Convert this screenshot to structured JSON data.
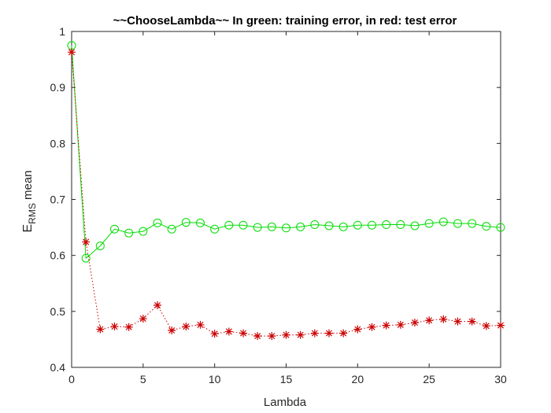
{
  "chart_data": {
    "type": "line",
    "title": "~~ChooseLambda~~ In green: training error, in red: test error",
    "xlabel": "Lambda",
    "ylabel_main": "E",
    "ylabel_sub": "RMS",
    "ylabel_suffix": " mean",
    "xlim": [
      0,
      30
    ],
    "ylim": [
      0.4,
      1.0
    ],
    "xticks": [
      0,
      5,
      10,
      15,
      20,
      25,
      30
    ],
    "yticks": [
      0.4,
      0.5,
      0.6,
      0.7,
      0.8,
      0.9,
      1.0
    ],
    "ytick_labels": [
      "0.4",
      "0.5",
      "0.6",
      "0.7",
      "0.8",
      "0.9",
      "1"
    ],
    "grid": false,
    "x": [
      0,
      1,
      2,
      3,
      4,
      5,
      6,
      7,
      8,
      9,
      10,
      11,
      12,
      13,
      14,
      15,
      16,
      17,
      18,
      19,
      20,
      21,
      22,
      23,
      24,
      25,
      26,
      27,
      28,
      29,
      30
    ],
    "series": [
      {
        "color": "#00dd00",
        "marker": "circle",
        "linestyle": "solid",
        "values": [
          0.975,
          0.595,
          0.617,
          0.647,
          0.64,
          0.643,
          0.658,
          0.647,
          0.659,
          0.658,
          0.647,
          0.654,
          0.654,
          0.65,
          0.651,
          0.649,
          0.651,
          0.655,
          0.653,
          0.651,
          0.654,
          0.654,
          0.655,
          0.655,
          0.653,
          0.657,
          0.66,
          0.657,
          0.657,
          0.652,
          0.65
        ]
      },
      {
        "color": "#cc0000",
        "marker": "asterisk",
        "linestyle": "dotted",
        "values": [
          0.963,
          0.624,
          0.468,
          0.473,
          0.472,
          0.487,
          0.511,
          0.466,
          0.473,
          0.476,
          0.46,
          0.464,
          0.461,
          0.456,
          0.456,
          0.458,
          0.458,
          0.461,
          0.461,
          0.461,
          0.468,
          0.472,
          0.475,
          0.476,
          0.48,
          0.484,
          0.486,
          0.482,
          0.482,
          0.474,
          0.475
        ]
      }
    ]
  }
}
